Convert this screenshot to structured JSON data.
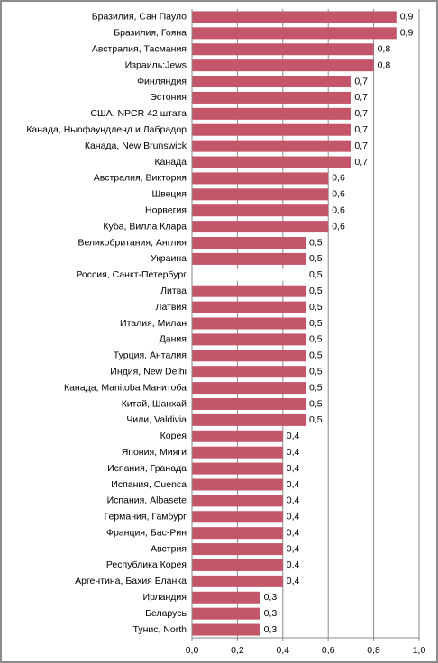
{
  "chart_data": {
    "type": "barh",
    "categories": [
      "Бразилия, Сан Пауло",
      "Бразилия, Гояна",
      "Австралия, Тасмания",
      "Израиль:Jews",
      "Финляндия",
      "Эстония",
      "США, NPCR  42 штата",
      "Канада, Ньюфаундленд и Лабрадор",
      "Канада, New Brunswick",
      "Канада",
      "Австралия, Виктория",
      "Швеция",
      "Норвегия",
      "Куба, Вилла Клара",
      "Великобритания, Англия",
      "Украина",
      "Россия, Санкт-Петербург",
      "Литва",
      "Латвия",
      "Италия, Милан",
      "Дания",
      "Турция, Анталия",
      "Индия, New Delhi",
      "Канада, Manitoba Манитоба",
      "Китай, Шанхай",
      "Чили, Valdivia",
      "Корея",
      "Япония, Мияги",
      "Испания, Гранада",
      "Испания, Cuenca",
      "Испания, Albasete",
      "Германия, Гамбург",
      "Франция, Бас-Рин",
      "Австрия",
      "Республика Корея",
      "Аргентина, Бахия Бланка",
      "Ирландия",
      "Беларусь",
      "Тунис, North"
    ],
    "values": [
      0.9,
      0.9,
      0.8,
      0.8,
      0.7,
      0.7,
      0.7,
      0.7,
      0.7,
      0.7,
      0.6,
      0.6,
      0.6,
      0.6,
      0.5,
      0.5,
      0.5,
      0.5,
      0.5,
      0.5,
      0.5,
      0.5,
      0.5,
      0.5,
      0.5,
      0.5,
      0.4,
      0.4,
      0.4,
      0.4,
      0.4,
      0.4,
      0.4,
      0.4,
      0.4,
      0.4,
      0.3,
      0.3,
      0.3
    ],
    "value_labels": [
      "0,9",
      "0,9",
      "0,8",
      "0,8",
      "0,7",
      "0,7",
      "0,7",
      "0,7",
      "0,7",
      "0,7",
      "0,6",
      "0,6",
      "0,6",
      "0,6",
      "0,5",
      "0,5",
      "0,5",
      "0,5",
      "0,5",
      "0,5",
      "0,5",
      "0,5",
      "0,5",
      "0,5",
      "0,5",
      "0,5",
      "0,4",
      "0,4",
      "0,4",
      "0,4",
      "0,4",
      "0,4",
      "0,4",
      "0,4",
      "0,4",
      "0,4",
      "0,3",
      "0,3",
      "0,3"
    ],
    "color": "#c4566a",
    "highlight": {
      "index": 16,
      "color": "#ffffff"
    },
    "xlim": [
      0,
      1
    ],
    "xticks": [
      {
        "value": 0,
        "label": "0,0"
      },
      {
        "value": 0.2,
        "label": "0,2"
      },
      {
        "value": 0.4,
        "label": "0,4"
      },
      {
        "value": 0.6,
        "label": "0,6"
      },
      {
        "value": 0.8,
        "label": "0,8"
      },
      {
        "value": 1,
        "label": "1,0"
      }
    ],
    "grid": true
  }
}
